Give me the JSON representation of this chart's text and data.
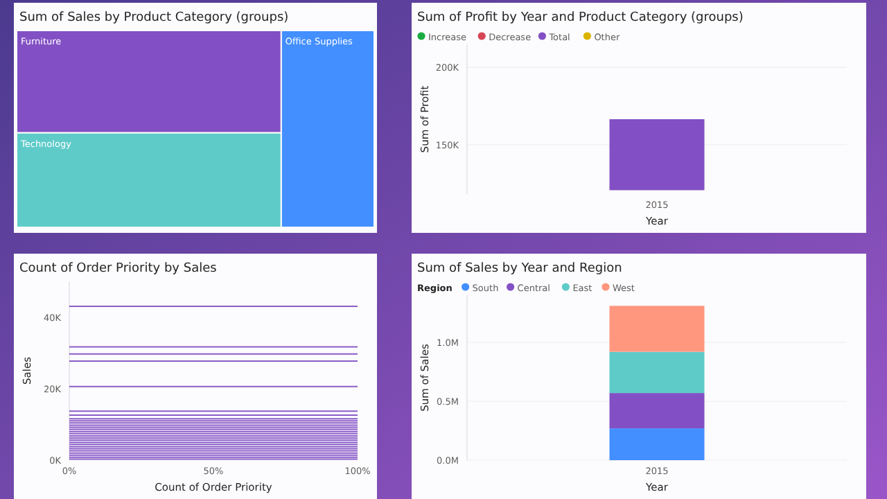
{
  "chart_data": [
    {
      "type": "other",
      "title": "Sum of Sales by Product Category (groups)",
      "categories": [
        "Furniture",
        "Technology",
        "Office Supplies"
      ],
      "colors": [
        "#8250c4",
        "#5ecbc8",
        "#438fff"
      ]
    },
    {
      "type": "bar",
      "title": "Sum of Profit by Year and Product Category (groups)",
      "categories": [
        "2015"
      ],
      "xlabel": "Year",
      "ylabel": "Sum of Profit",
      "ylim": [
        118000,
        215000
      ],
      "yticks": [
        {
          "value": 150000,
          "label": "150K"
        },
        {
          "value": 200000,
          "label": "200K"
        }
      ],
      "grid": "y",
      "legend": "top left",
      "series": [
        {
          "name": "Increase",
          "color": "#1aab40",
          "values": [
            null
          ]
        },
        {
          "name": "Decrease",
          "color": "#d64554",
          "values": [
            null
          ]
        },
        {
          "name": "Total",
          "color": "#8250c4",
          "values": [
            46000
          ],
          "base": [
            120500
          ]
        },
        {
          "name": "Other",
          "color": "#d9b300",
          "values": [
            null
          ]
        }
      ]
    },
    {
      "type": "line",
      "title": "Count of Order Priority by Sales",
      "xlabel": "Count of Order Priority",
      "ylabel": "Sales",
      "xlim": [
        0,
        100
      ],
      "xticks": [
        {
          "value": 0,
          "label": "0%"
        },
        {
          "value": 50,
          "label": "50%"
        },
        {
          "value": 100,
          "label": "100%"
        }
      ],
      "ylim": [
        0,
        50000
      ],
      "x": [
        0,
        100
      ],
      "yticks": [
        {
          "value": 0,
          "label": "0K"
        },
        {
          "value": 20000,
          "label": "20K"
        },
        {
          "value": 40000,
          "label": "40K"
        }
      ],
      "series": [
        {
          "color": "#8a5cc8",
          "values": [
            43000,
            43000
          ]
        },
        {
          "color": "#8a5cc8",
          "values": [
            31700,
            31700
          ]
        },
        {
          "color": "#8a5cc8",
          "values": [
            29700,
            29700
          ]
        },
        {
          "color": "#8a5cc8",
          "values": [
            27700,
            27700
          ]
        },
        {
          "color": "#8a5cc8",
          "values": [
            20600,
            20600
          ]
        },
        {
          "color": "#8a5cc8",
          "values": [
            13700,
            13700
          ]
        },
        {
          "color": "#8a5cc8",
          "values": [
            12600,
            12600
          ]
        },
        {
          "color": "#8a5cc8",
          "values": [
            11600,
            11600
          ]
        },
        {
          "color": "#8a5cc8",
          "values": [
            11000,
            11000
          ]
        },
        {
          "color": "#8a5cc8",
          "values": [
            10400,
            10400
          ]
        },
        {
          "color": "#8a5cc8",
          "values": [
            9800,
            9800
          ]
        },
        {
          "color": "#8a5cc8",
          "values": [
            9200,
            9200
          ]
        },
        {
          "color": "#8a5cc8",
          "values": [
            8600,
            8600
          ]
        },
        {
          "color": "#8a5cc8",
          "values": [
            8000,
            8000
          ]
        },
        {
          "color": "#8a5cc8",
          "values": [
            7400,
            7400
          ]
        },
        {
          "color": "#8a5cc8",
          "values": [
            6800,
            6800
          ]
        },
        {
          "color": "#8a5cc8",
          "values": [
            6200,
            6200
          ]
        },
        {
          "color": "#8a5cc8",
          "values": [
            5600,
            5600
          ]
        },
        {
          "color": "#8a5cc8",
          "values": [
            5000,
            5000
          ]
        },
        {
          "color": "#8a5cc8",
          "values": [
            4400,
            4400
          ]
        },
        {
          "color": "#8a5cc8",
          "values": [
            3800,
            3800
          ]
        },
        {
          "color": "#8a5cc8",
          "values": [
            3200,
            3200
          ]
        },
        {
          "color": "#8a5cc8",
          "values": [
            2600,
            2600
          ]
        },
        {
          "color": "#8a5cc8",
          "values": [
            2000,
            2000
          ]
        },
        {
          "color": "#8a5cc8",
          "values": [
            1400,
            1400
          ]
        },
        {
          "color": "#8a5cc8",
          "values": [
            800,
            800
          ]
        },
        {
          "color": "#8a5cc8",
          "values": [
            300,
            300
          ]
        }
      ]
    },
    {
      "type": "bar",
      "stacked": true,
      "title": "Sum of Sales by Year and Region",
      "categories": [
        "2015"
      ],
      "xlabel": "Year",
      "ylabel": "Sum of Sales",
      "legend_title": "Region",
      "legend": "top left",
      "ylim": [
        0,
        1400000
      ],
      "yticks": [
        {
          "value": 0,
          "label": "0.0M"
        },
        {
          "value": 500000,
          "label": "0.5M"
        },
        {
          "value": 1000000,
          "label": "1.0M"
        }
      ],
      "grid": "y",
      "series": [
        {
          "name": "South",
          "color": "#438fff",
          "values": [
            270000
          ]
        },
        {
          "name": "Central",
          "color": "#8250c4",
          "values": [
            300000
          ]
        },
        {
          "name": "East",
          "color": "#5ecbc8",
          "values": [
            350000
          ]
        },
        {
          "name": "West",
          "color": "#ff977e",
          "values": [
            390000
          ]
        }
      ]
    }
  ]
}
